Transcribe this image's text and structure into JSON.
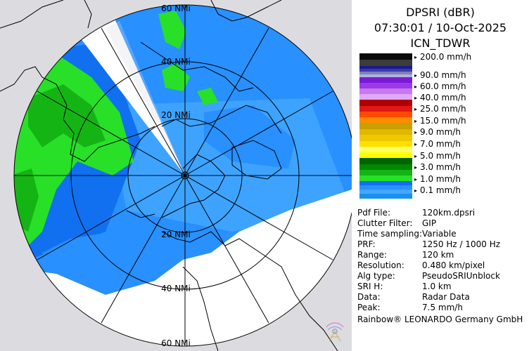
{
  "header": {
    "product": "DPSRI (dBR)",
    "datetime": "07:30:01 / 10-Oct-2025",
    "site": "ICN_TDWR"
  },
  "legend": {
    "items": [
      {
        "label": "200.0 mm/h",
        "colors": [
          "#0a0a0a",
          "#3c3c3c"
        ]
      },
      {
        "label": "90.0 mm/h",
        "colors": [
          "#1a1a8a",
          "#3a3aa8",
          "#8080c0",
          "#b0b0d8"
        ]
      },
      {
        "label": "60.0 mm/h",
        "colors": [
          "#7a1ad8",
          "#9a3ae8"
        ]
      },
      {
        "label": "40.0 mm/h",
        "colors": [
          "#c878f0",
          "#e0a8f8"
        ]
      },
      {
        "label": "25.0 mm/h",
        "colors": [
          "#b00000",
          "#e01818"
        ]
      },
      {
        "label": "15.0 mm/h",
        "colors": [
          "#ff4a00",
          "#ff8c00"
        ]
      },
      {
        "label": "9.0 mm/h",
        "colors": [
          "#c8a000",
          "#e0b800"
        ]
      },
      {
        "label": "7.0 mm/h",
        "colors": [
          "#f0c800",
          "#ffe000"
        ]
      },
      {
        "label": "5.0 mm/h",
        "colors": [
          "#ffff60",
          "#ffff00"
        ]
      },
      {
        "label": "3.0 mm/h",
        "colors": [
          "#006400",
          "#008800"
        ]
      },
      {
        "label": "1.0 mm/h",
        "colors": [
          "#14b414",
          "#28e028"
        ]
      },
      {
        "label": "0.1 mm/h",
        "colors": [
          "#1070f0",
          "#2890ff",
          "#44a8ff",
          "#1890f0"
        ]
      }
    ]
  },
  "info": {
    "rows": [
      {
        "key": "Pdf File:",
        "value": "120km.dpsri"
      },
      {
        "key": "Clutter Filter:",
        "value": "GIP"
      },
      {
        "key": "Time sampling:",
        "value": "Variable"
      },
      {
        "key": "PRF:",
        "value": "1250 Hz / 1000 Hz"
      },
      {
        "key": "Range:",
        "value": "120 km"
      },
      {
        "key": "Resolution:",
        "value": "0.480 km/pixel"
      },
      {
        "key": "Alg type:",
        "value": "PseudoSRIUnblock"
      },
      {
        "key": "SRI H:",
        "value": "1.0 km"
      },
      {
        "key": "Data:",
        "value": "Radar Data"
      },
      {
        "key": "Peak:",
        "value": "7.5 mm/h"
      }
    ]
  },
  "credit": "Rainbow® LEONARDO Germany GmbH",
  "map": {
    "ring_labels": {
      "top60": "60 NMi",
      "top40": "40 NMi",
      "top20": "20 NMi",
      "bot20": "20 NMi",
      "bot40": "40 NMi",
      "bot60": "60 NMi"
    },
    "colors": {
      "outside": "#dcdce0",
      "nodata": "#ffffff",
      "light_rain": "#2890ff",
      "light_rain_alt": "#1070f0",
      "moderate": "#28e028",
      "moderate_dark": "#14b414"
    }
  }
}
